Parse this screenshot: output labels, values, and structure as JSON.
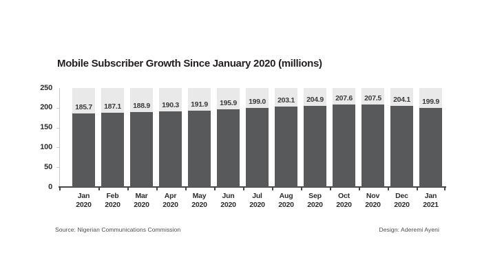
{
  "chart_data": {
    "type": "bar",
    "title": "Mobile Subscriber Growth Since January 2020 (millions)",
    "categories": [
      "Jan 2020",
      "Feb 2020",
      "Mar 2020",
      "Apr 2020",
      "May 2020",
      "Jun 2020",
      "Jul 2020",
      "Aug 2020",
      "Sep 2020",
      "Oct 2020",
      "Nov 2020",
      "Dec 2020",
      "Jan 2021"
    ],
    "values": [
      185.7,
      187.1,
      188.9,
      190.3,
      191.9,
      195.9,
      199.0,
      203.1,
      204.9,
      207.6,
      207.5,
      204.1,
      199.9
    ],
    "value_labels": [
      "185.7",
      "187.1",
      "188.9",
      "190.3",
      "191.9",
      "195.9",
      "199.0",
      "203.1",
      "204.9",
      "207.6",
      "207.5",
      "204.1",
      "199.9"
    ],
    "xlabel": "",
    "ylabel": "",
    "ylim": [
      0,
      250
    ],
    "yticks": [
      0,
      50,
      100,
      150,
      200,
      250
    ],
    "grid": false,
    "legend_position": "none",
    "bar_color": "#58595b",
    "track_color": "#e9e9e9"
  },
  "footer": {
    "source": "Source: Nigerian Communications Commission",
    "design": "Design: Aderemi Ayeni"
  }
}
